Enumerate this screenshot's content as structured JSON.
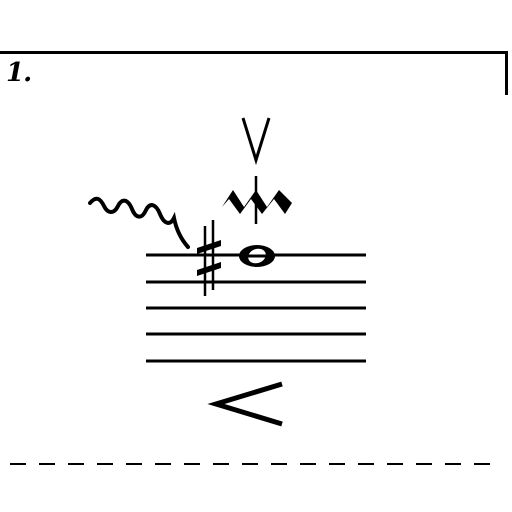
{
  "exercise": {
    "number_label": "1."
  },
  "notation": {
    "articulations": [
      "up-bow",
      "mordent"
    ],
    "accidental": "sharp",
    "note": "whole-note",
    "dynamic": "crescendo-hairpin",
    "ornament": "glissando-wavy-line",
    "staff_lines": 5,
    "separator": "dashed-line"
  }
}
